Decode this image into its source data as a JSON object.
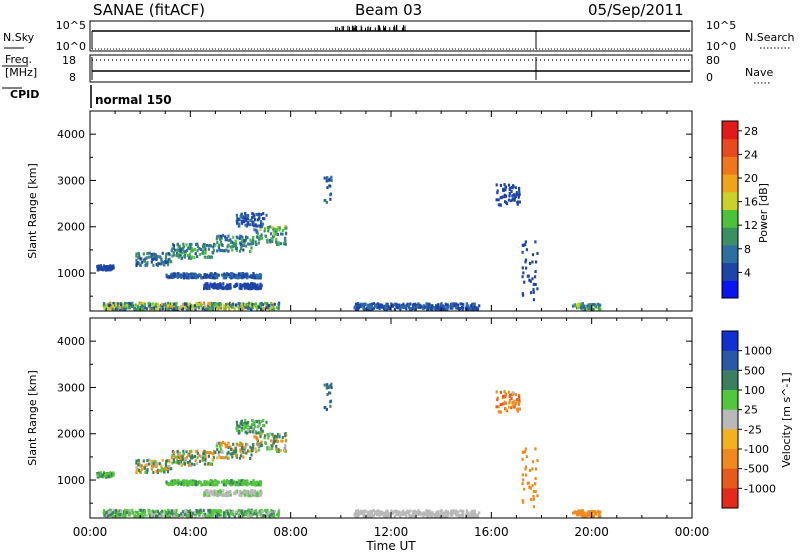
{
  "header": {
    "title": "SANAE (fitACF)",
    "beam": "Beam 03",
    "date": "05/Sep/2011"
  },
  "param_panels": {
    "nsky": {
      "left_label": "N.Sky",
      "right_label": "N.Search",
      "left_ticks": [
        "10^5",
        "10^0"
      ],
      "right_ticks": [
        "10^5",
        "10^0"
      ]
    },
    "freq": {
      "left_label_1": "Freq.",
      "left_label_2": "[MHz]",
      "right_label": "Nave",
      "left_ticks": [
        "18",
        "8"
      ],
      "right_ticks": [
        "80",
        "0"
      ]
    },
    "cpid": {
      "label": "CPID",
      "mode": "normal 150"
    }
  },
  "axes": {
    "xlabel": "Time UT",
    "xticks": [
      "00:00",
      "04:00",
      "08:00",
      "12:00",
      "16:00",
      "20:00",
      "00:00"
    ],
    "ylabel": "Slant Range [km]",
    "yticks": [
      "1000",
      "2000",
      "3000",
      "4000"
    ]
  },
  "colorbars": {
    "power": {
      "label": "Power [dB]",
      "ticks": [
        "4",
        "8",
        "12",
        "16",
        "20",
        "24",
        "28"
      ],
      "colors": [
        "#0a14f0",
        "#1f44a8",
        "#2e6fa0",
        "#3c8f64",
        "#4cc23a",
        "#c9d12a",
        "#f0a41e",
        "#f0761e",
        "#e8491e",
        "#e31a1c"
      ]
    },
    "velocity": {
      "label": "Velocity [m s^-1]",
      "ticks": [
        "1000",
        "500",
        "100",
        "25",
        "-25",
        "-100",
        "-500",
        "-1000"
      ],
      "colors": [
        "#1030d0",
        "#2a58a8",
        "#3a8060",
        "#52c63c",
        "#b9b9b9",
        "#f0b21e",
        "#f08a1e",
        "#e85a1c",
        "#e32a1c"
      ]
    }
  },
  "chart_data": [
    {
      "type": "heatmap",
      "name": "power",
      "xlim": [
        0,
        24
      ],
      "ylim": [
        180,
        4500
      ],
      "color_scale": [
        0,
        30
      ],
      "features": [
        {
          "t0": 0.2,
          "t1": 0.9,
          "r0": 1050,
          "r1": 1150,
          "v0": 3,
          "v1": 6
        },
        {
          "t0": 1.8,
          "t1": 3.2,
          "r0": 1150,
          "r1": 1420,
          "v0": 4,
          "v1": 12
        },
        {
          "t0": 3.2,
          "t1": 5.0,
          "r0": 1300,
          "r1": 1620,
          "v0": 5,
          "v1": 14
        },
        {
          "t0": 5.0,
          "t1": 6.5,
          "r0": 1450,
          "r1": 1800,
          "v0": 5,
          "v1": 13
        },
        {
          "t0": 6.5,
          "t1": 7.8,
          "r0": 1600,
          "r1": 2000,
          "v0": 6,
          "v1": 16
        },
        {
          "t0": 5.8,
          "t1": 7.0,
          "r0": 2000,
          "r1": 2300,
          "v0": 3,
          "v1": 8
        },
        {
          "t0": 3.0,
          "t1": 6.8,
          "r0": 880,
          "r1": 980,
          "v0": 3,
          "v1": 9
        },
        {
          "t0": 4.5,
          "t1": 6.8,
          "r0": 650,
          "r1": 760,
          "v0": 3,
          "v1": 6
        },
        {
          "t0": 0.5,
          "t1": 7.5,
          "r0": 200,
          "r1": 340,
          "v0": 3,
          "v1": 20
        },
        {
          "t0": 9.3,
          "t1": 9.6,
          "r0": 2500,
          "r1": 3100,
          "v0": 3,
          "v1": 10
        },
        {
          "t0": 16.1,
          "t1": 17.1,
          "r0": 2450,
          "r1": 2900,
          "v0": 3,
          "v1": 6
        },
        {
          "t0": 17.2,
          "t1": 17.8,
          "r0": 400,
          "r1": 1700,
          "v0": 3,
          "v1": 6
        },
        {
          "t0": 19.2,
          "t1": 20.3,
          "r0": 200,
          "r1": 330,
          "v0": 6,
          "v1": 16
        },
        {
          "t0": 10.5,
          "t1": 15.5,
          "r0": 200,
          "r1": 330,
          "v0": 3,
          "v1": 8
        }
      ]
    },
    {
      "type": "heatmap",
      "name": "velocity",
      "xlim": [
        0,
        24
      ],
      "ylim": [
        180,
        4500
      ],
      "color_scale": [
        -1000,
        1000
      ],
      "features": [
        {
          "t0": 0.2,
          "t1": 0.9,
          "r0": 1050,
          "r1": 1150,
          "v0": 20,
          "v1": 150
        },
        {
          "t0": 1.8,
          "t1": 3.2,
          "r0": 1150,
          "r1": 1420,
          "v0": -200,
          "v1": 300
        },
        {
          "t0": 3.2,
          "t1": 5.0,
          "r0": 1300,
          "r1": 1620,
          "v0": -400,
          "v1": 500
        },
        {
          "t0": 5.0,
          "t1": 6.5,
          "r0": 1450,
          "r1": 1800,
          "v0": -300,
          "v1": 400
        },
        {
          "t0": 6.5,
          "t1": 7.8,
          "r0": 1600,
          "r1": 2000,
          "v0": -150,
          "v1": 300
        },
        {
          "t0": 5.8,
          "t1": 7.0,
          "r0": 2000,
          "r1": 2300,
          "v0": 20,
          "v1": 200
        },
        {
          "t0": 3.0,
          "t1": 6.8,
          "r0": 880,
          "r1": 980,
          "v0": 30,
          "v1": 120
        },
        {
          "t0": 4.5,
          "t1": 6.8,
          "r0": 650,
          "r1": 760,
          "v0": -20,
          "v1": 40
        },
        {
          "t0": 0.5,
          "t1": 7.5,
          "r0": 200,
          "r1": 340,
          "v0": -20,
          "v1": 150
        },
        {
          "t0": 9.3,
          "t1": 9.6,
          "r0": 2500,
          "r1": 3100,
          "v0": 200,
          "v1": 800
        },
        {
          "t0": 16.1,
          "t1": 17.1,
          "r0": 2450,
          "r1": 2900,
          "v0": -900,
          "v1": -20
        },
        {
          "t0": 17.2,
          "t1": 17.8,
          "r0": 400,
          "r1": 1700,
          "v0": -500,
          "v1": -100
        },
        {
          "t0": 19.2,
          "t1": 20.3,
          "r0": 200,
          "r1": 330,
          "v0": -400,
          "v1": -100
        },
        {
          "t0": 10.5,
          "t1": 15.5,
          "r0": 200,
          "r1": 330,
          "v0": -20,
          "v1": 20
        }
      ]
    }
  ]
}
